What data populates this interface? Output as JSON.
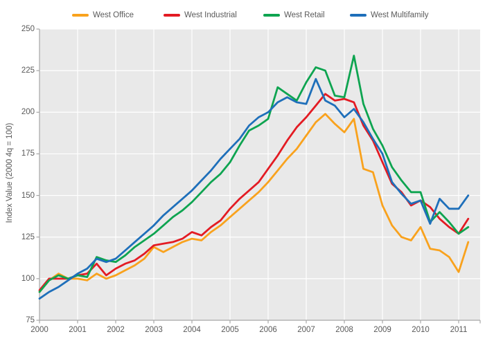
{
  "chart_data": {
    "type": "line",
    "title": "",
    "xlabel": "",
    "ylabel": "Index Value (2000 4q = 100)",
    "ylim": [
      75,
      250
    ],
    "y_ticks": [
      250,
      225,
      200,
      175,
      150,
      125,
      100,
      75
    ],
    "x_tick_years": [
      2000,
      2001,
      2002,
      2003,
      2004,
      2005,
      2006,
      2007,
      2008,
      2009,
      2010,
      2011
    ],
    "legend_position": "top",
    "grid": "white gridlines on light gray plot background",
    "plot_bg": "#E9E9E9",
    "grid_color": "#FFFFFF",
    "axis_color": "#A6A6A6",
    "text_color": "#595959",
    "quarters": [
      "2000 Q1",
      "2000 Q2",
      "2000 Q3",
      "2000 Q4",
      "2001 Q1",
      "2001 Q2",
      "2001 Q3",
      "2001 Q4",
      "2002 Q1",
      "2002 Q2",
      "2002 Q3",
      "2002 Q4",
      "2003 Q1",
      "2003 Q2",
      "2003 Q3",
      "2003 Q4",
      "2004 Q1",
      "2004 Q2",
      "2004 Q3",
      "2004 Q4",
      "2005 Q1",
      "2005 Q2",
      "2005 Q3",
      "2005 Q4",
      "2006 Q1",
      "2006 Q2",
      "2006 Q3",
      "2006 Q4",
      "2007 Q1",
      "2007 Q2",
      "2007 Q3",
      "2007 Q4",
      "2008 Q1",
      "2008 Q2",
      "2008 Q3",
      "2008 Q4",
      "2009 Q1",
      "2009 Q2",
      "2009 Q3",
      "2009 Q4",
      "2010 Q1",
      "2010 Q2",
      "2010 Q3",
      "2010 Q4",
      "2011 Q1",
      "2011 Q2"
    ],
    "series": [
      {
        "name": "West Office",
        "color": "#F9A21D",
        "values": [
          92,
          99,
          103,
          100,
          100,
          99,
          103,
          100,
          102,
          105,
          108,
          112,
          119,
          116,
          119,
          122,
          124,
          123,
          128,
          132,
          137,
          142,
          147,
          152,
          158,
          165,
          172,
          178,
          186,
          194,
          199,
          193,
          188,
          196,
          166,
          164,
          144,
          132,
          125,
          123,
          131,
          118,
          117,
          113,
          104,
          122
        ]
      },
      {
        "name": "West Industrial",
        "color": "#E31B23",
        "values": [
          93,
          100,
          100,
          100,
          102,
          103,
          109,
          102,
          106,
          109,
          111,
          115,
          120,
          121,
          122,
          124,
          128,
          126,
          131,
          135,
          142,
          148,
          153,
          158,
          166,
          174,
          183,
          191,
          197,
          204,
          211,
          207,
          208,
          206,
          192,
          183,
          170,
          157,
          152,
          144,
          147,
          143,
          136,
          131,
          127,
          136
        ]
      },
      {
        "name": "West Retail",
        "color": "#0EA450",
        "values": [
          92,
          99,
          102,
          100,
          102,
          101,
          113,
          111,
          110,
          114,
          119,
          123,
          127,
          132,
          137,
          141,
          146,
          152,
          158,
          163,
          170,
          180,
          189,
          192,
          196,
          215,
          211,
          207,
          218,
          227,
          225,
          210,
          209,
          234,
          205,
          190,
          180,
          167,
          159,
          152,
          152,
          134,
          140,
          134,
          127,
          131
        ]
      },
      {
        "name": "West Multifamily",
        "color": "#1E6FBA",
        "values": [
          88,
          92,
          95,
          99,
          103,
          106,
          112,
          110,
          112,
          117,
          122,
          127,
          132,
          138,
          143,
          148,
          153,
          159,
          165,
          172,
          178,
          184,
          192,
          197,
          200,
          206,
          209,
          206,
          205,
          220,
          207,
          204,
          197,
          202,
          194,
          184,
          175,
          158,
          151,
          145,
          147,
          133,
          148,
          142,
          142,
          150
        ]
      }
    ]
  }
}
